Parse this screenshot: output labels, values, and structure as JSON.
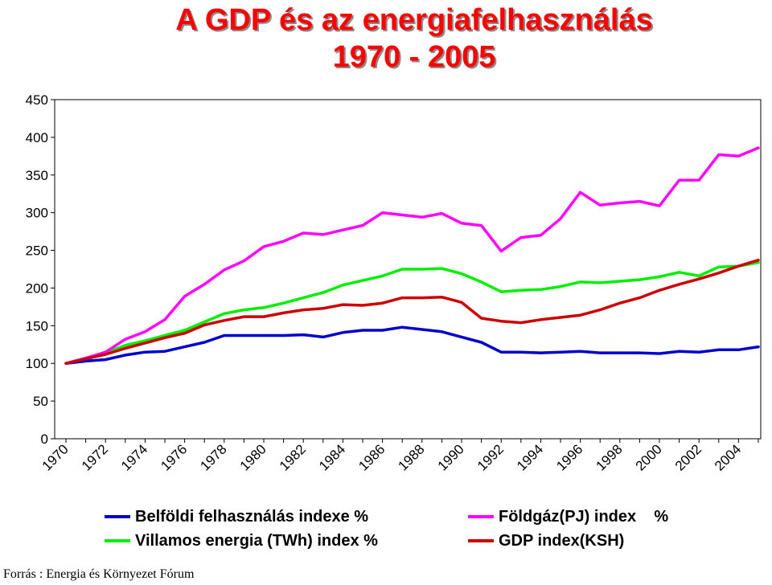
{
  "chart_data": {
    "type": "line",
    "title": "A GDP és az energiafelhasználás",
    "subtitle": "1970 - 2005",
    "xlabel": "",
    "ylabel": "",
    "ylim": [
      0,
      450
    ],
    "yticks": [
      0,
      50,
      100,
      150,
      200,
      250,
      300,
      350,
      400,
      450
    ],
    "xtick_labels": [
      "1970",
      "1972",
      "1974",
      "1976",
      "1978",
      "1980",
      "1982",
      "1984",
      "1986",
      "1988",
      "1990",
      "1992",
      "1994",
      "1996",
      "1998",
      "2000",
      "2002",
      "2004"
    ],
    "x": [
      1970,
      1971,
      1972,
      1973,
      1974,
      1975,
      1976,
      1977,
      1978,
      1979,
      1980,
      1981,
      1982,
      1983,
      1984,
      1985,
      1986,
      1987,
      1988,
      1989,
      1990,
      1991,
      1992,
      1993,
      1994,
      1995,
      1996,
      1997,
      1998,
      1999,
      2000,
      2001,
      2002,
      2003,
      2004,
      2005
    ],
    "grid": false,
    "series": [
      {
        "name": "Belföldi felhasználás indexe %",
        "color": "#0000cc",
        "values": [
          100,
          103,
          105,
          111,
          115,
          116,
          122,
          128,
          137,
          137,
          137,
          137,
          138,
          135,
          141,
          144,
          144,
          148,
          145,
          142,
          135,
          128,
          115,
          115,
          114,
          115,
          116,
          114,
          114,
          114,
          113,
          116,
          115,
          118,
          118,
          122
        ]
      },
      {
        "name": "Villamos energia (TWh) index %",
        "color": "#00ee00",
        "values": [
          100,
          107,
          114,
          124,
          130,
          137,
          144,
          155,
          166,
          171,
          174,
          180,
          187,
          194,
          204,
          210,
          216,
          225,
          225,
          226,
          219,
          208,
          195,
          197,
          198,
          202,
          208,
          207,
          209,
          211,
          215,
          221,
          216,
          228,
          229,
          234
        ]
      },
      {
        "name": "Földgáz(PJ) index    %",
        "color": "#ff00ff",
        "values": [
          100,
          107,
          115,
          132,
          142,
          158,
          189,
          205,
          224,
          236,
          255,
          262,
          273,
          271,
          277,
          283,
          300,
          297,
          294,
          299,
          286,
          283,
          249,
          267,
          270,
          292,
          327,
          310,
          313,
          315,
          309,
          343,
          343,
          377,
          375,
          386
        ]
      },
      {
        "name": "GDP index(KSH)",
        "color": "#cc0000",
        "values": [
          100,
          106,
          112,
          120,
          127,
          134,
          140,
          151,
          157,
          162,
          162,
          167,
          171,
          173,
          178,
          177,
          180,
          187,
          187,
          188,
          181,
          160,
          156,
          154,
          158,
          161,
          164,
          171,
          180,
          187,
          197,
          205,
          212,
          220,
          229,
          237
        ]
      }
    ]
  },
  "legend_items": [
    {
      "label": "Belföldi felhasználás indexe %",
      "color": "#0000cc"
    },
    {
      "label": "Földgáz(PJ) index    %",
      "color": "#ff00ff"
    },
    {
      "label": "Villamos energia (TWh) index %",
      "color": "#00ee00"
    },
    {
      "label": "GDP index(KSH)",
      "color": "#cc0000"
    }
  ],
  "source": "Forrás : Energia és Környezet Fórum"
}
